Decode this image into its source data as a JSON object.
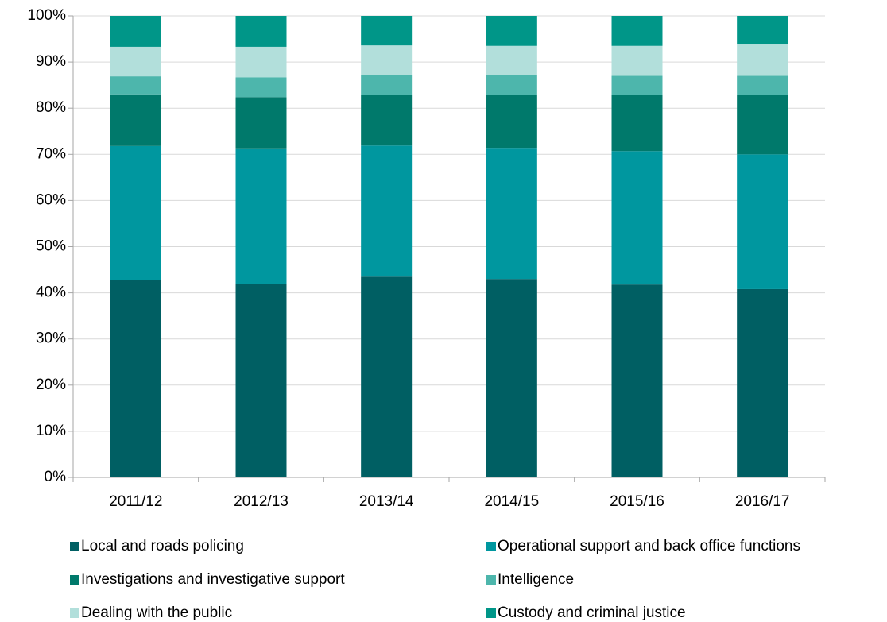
{
  "chart_data": {
    "type": "stacked_bar",
    "categories": [
      "2011/12",
      "2012/13",
      "2013/14",
      "2014/15",
      "2015/16",
      "2016/17"
    ],
    "series": [
      {
        "name": "Local and roads policing",
        "color": "#005f63",
        "values": [
          42.7,
          41.9,
          43.5,
          43.0,
          41.8,
          40.8
        ]
      },
      {
        "name": "Operational support and back office functions",
        "color": "#00979f",
        "values": [
          29.1,
          29.4,
          28.4,
          28.4,
          28.9,
          29.2
        ]
      },
      {
        "name": "Investigations and investigative support",
        "color": "#00796b",
        "values": [
          11.2,
          11.1,
          10.9,
          11.4,
          12.1,
          12.8
        ]
      },
      {
        "name": "Intelligence",
        "color": "#4db6ac",
        "values": [
          3.9,
          4.3,
          4.3,
          4.3,
          4.2,
          4.2
        ]
      },
      {
        "name": "Dealing with the public",
        "color": "#b2dfdb",
        "values": [
          6.4,
          6.6,
          6.5,
          6.4,
          6.5,
          6.8
        ]
      },
      {
        "name": "Custody and criminal justice",
        "color": "#009688",
        "values": [
          6.7,
          6.7,
          6.4,
          6.5,
          6.5,
          6.2
        ]
      }
    ],
    "ylim": [
      0,
      100
    ],
    "yticks": [
      {
        "value": 0,
        "label": "0%"
      },
      {
        "value": 10,
        "label": "10%"
      },
      {
        "value": 20,
        "label": "20%"
      },
      {
        "value": 30,
        "label": "30%"
      },
      {
        "value": 40,
        "label": "40%"
      },
      {
        "value": 50,
        "label": "50%"
      },
      {
        "value": 60,
        "label": "60%"
      },
      {
        "value": 70,
        "label": "70%"
      },
      {
        "value": 80,
        "label": "80%"
      },
      {
        "value": 90,
        "label": "90%"
      },
      {
        "value": 100,
        "label": "100%"
      }
    ],
    "grid": true,
    "legend": "bottom"
  }
}
